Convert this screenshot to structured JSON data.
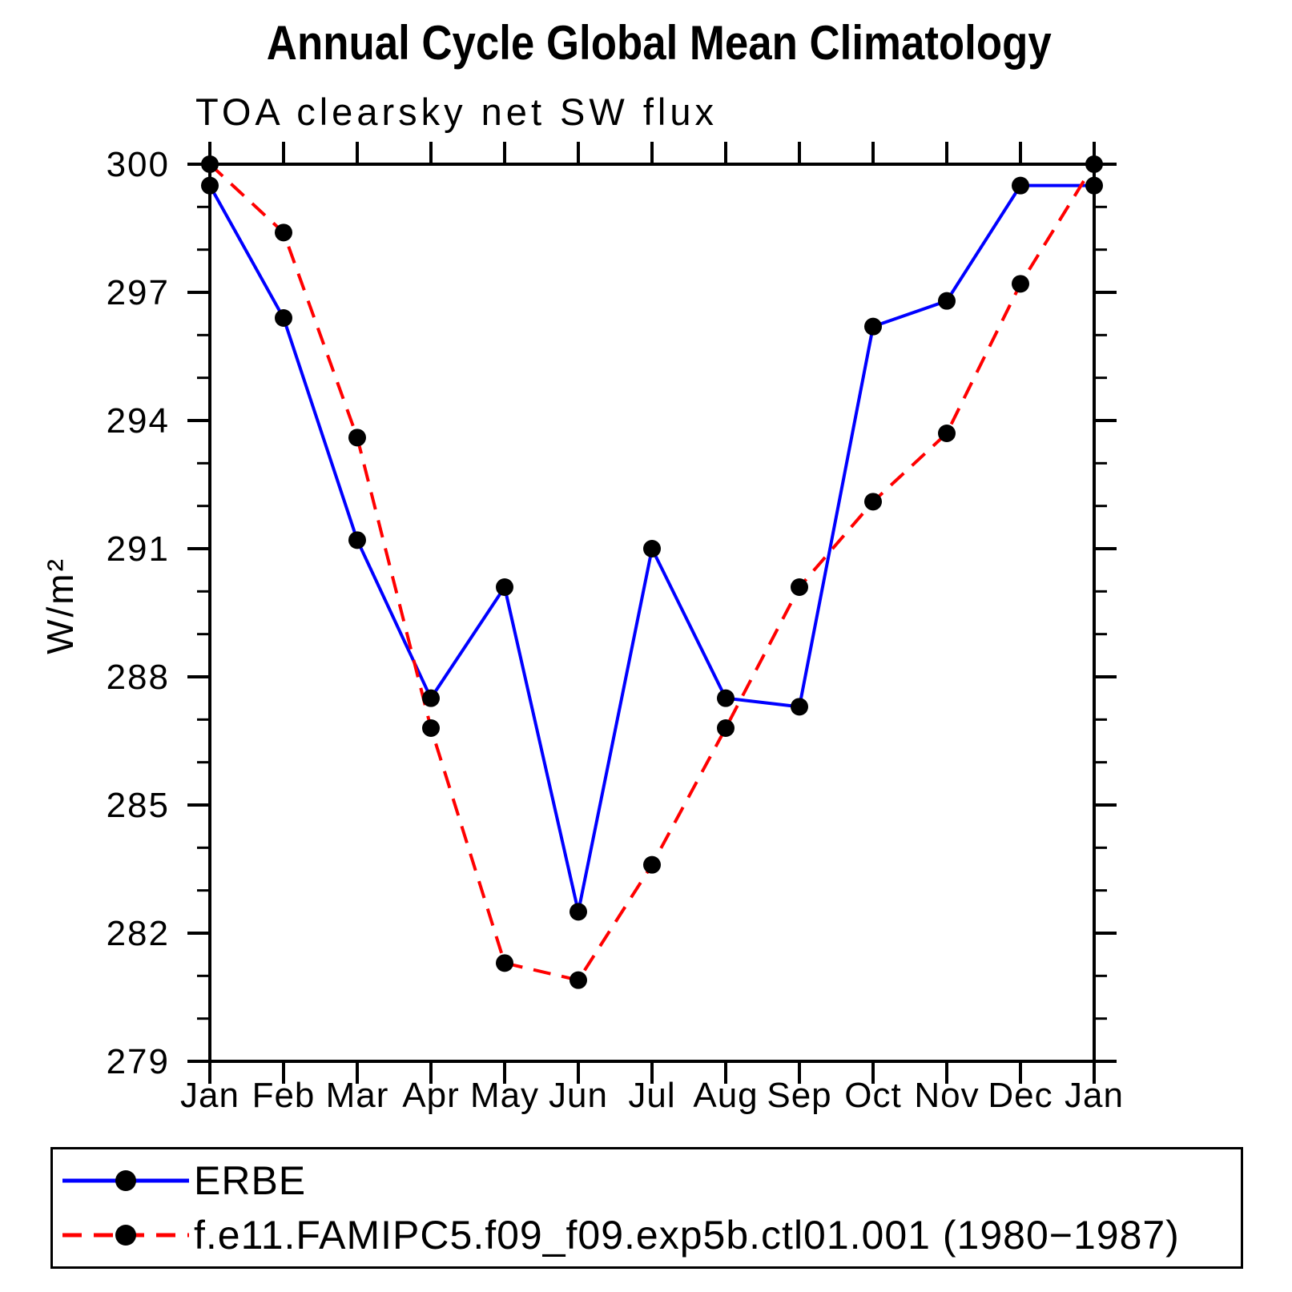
{
  "chart_data": {
    "type": "line",
    "title": "Annual Cycle Global Mean Climatology",
    "subtitle": "TOA clearsky net SW flux",
    "ylabel": "W/m²",
    "categories": [
      "Jan",
      "Feb",
      "Mar",
      "Apr",
      "May",
      "Jun",
      "Jul",
      "Aug",
      "Sep",
      "Oct",
      "Nov",
      "Dec",
      "Jan"
    ],
    "ylim": [
      279,
      300
    ],
    "y_major_step": 3,
    "y_minor_step": 1,
    "y_tick_labels": [
      "279",
      "282",
      "285",
      "288",
      "291",
      "294",
      "297",
      "300"
    ],
    "grid": false,
    "legend_position": "bottom",
    "frame_color": "#000000",
    "marker_color": "#000000",
    "series": [
      {
        "name": "ERBE",
        "color": "#0000ff",
        "line_style": "solid",
        "marker": "filled-circle",
        "values": [
          299.5,
          296.4,
          291.2,
          287.5,
          290.1,
          282.5,
          291.0,
          287.5,
          287.3,
          296.2,
          296.8,
          299.5,
          299.5
        ]
      },
      {
        "name": "f.e11.FAMIPC5.f09_f09.exp5b.ctl01.001 (1980−1987)",
        "color": "#ff0000",
        "line_style": "dashed",
        "marker": "filled-circle",
        "values": [
          300.0,
          298.4,
          293.6,
          286.8,
          281.3,
          280.9,
          283.6,
          286.8,
          290.1,
          292.1,
          293.7,
          297.2,
          300.0
        ]
      }
    ]
  }
}
